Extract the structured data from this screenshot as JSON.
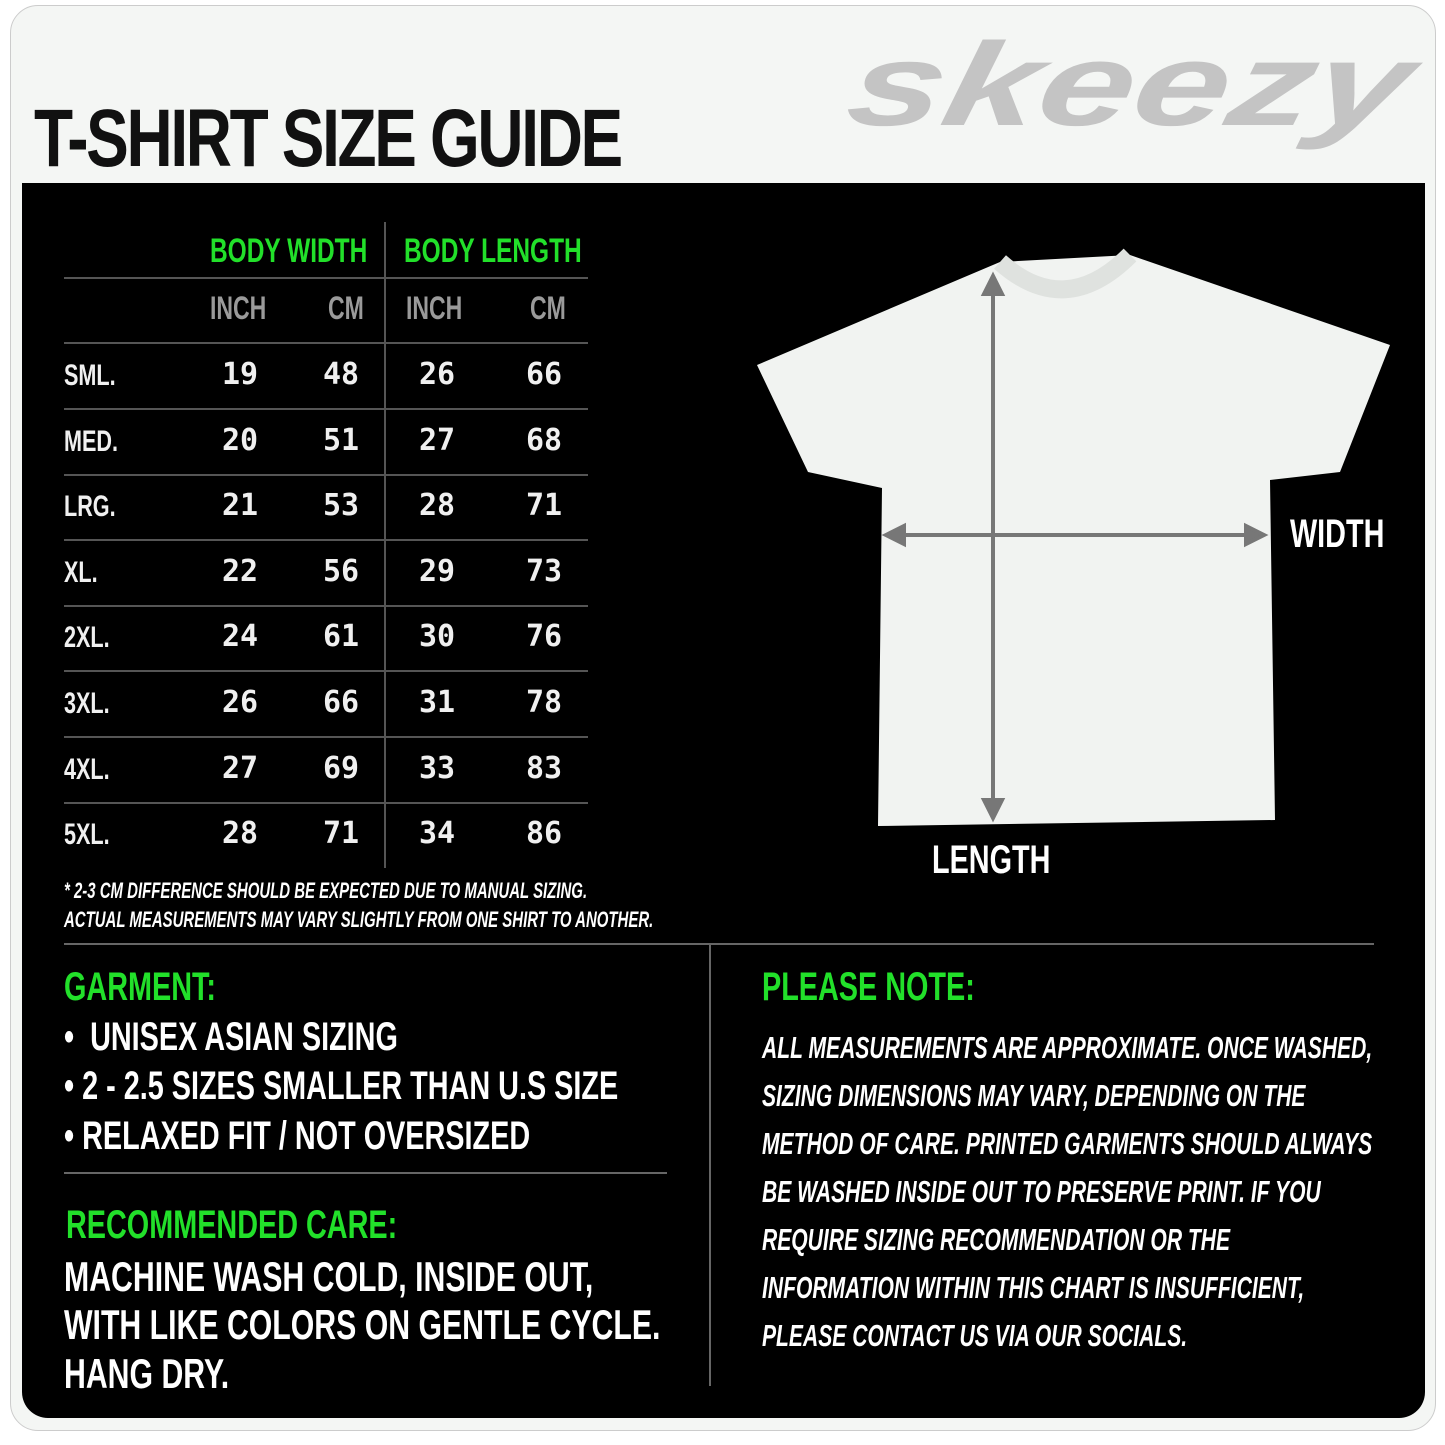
{
  "header": {
    "title": "T-SHIRT SIZE GUIDE",
    "brand": "SKEEZY"
  },
  "table": {
    "group_headers": [
      "BODY WIDTH",
      "BODY LENGTH"
    ],
    "unit_headers": [
      "INCH",
      "CM",
      "INCH",
      "CM"
    ],
    "rows": [
      {
        "size": "SML.",
        "values": [
          "19",
          "48",
          "26",
          "66"
        ]
      },
      {
        "size": "MED.",
        "values": [
          "20",
          "51",
          "27",
          "68"
        ]
      },
      {
        "size": "LRG.",
        "values": [
          "21",
          "53",
          "28",
          "71"
        ]
      },
      {
        "size": "XL.",
        "values": [
          "22",
          "56",
          "29",
          "73"
        ]
      },
      {
        "size": "2XL.",
        "values": [
          "24",
          "61",
          "30",
          "76"
        ]
      },
      {
        "size": "3XL.",
        "values": [
          "26",
          "66",
          "31",
          "78"
        ]
      },
      {
        "size": "4XL.",
        "values": [
          "27",
          "69",
          "33",
          "83"
        ]
      },
      {
        "size": "5XL.",
        "values": [
          "28",
          "71",
          "34",
          "86"
        ]
      }
    ],
    "footnotes": [
      "* 2-3 CM DIFFERENCE SHOULD BE EXPECTED DUE TO MANUAL SIZING.",
      "ACTUAL MEASUREMENTS MAY VARY SLIGHTLY FROM ONE SHIRT TO ANOTHER."
    ]
  },
  "diagram": {
    "width_label": "WIDTH",
    "length_label": "LENGTH"
  },
  "garment": {
    "heading": "GARMENT:",
    "bullets": [
      "UNISEX ASIAN SIZING",
      "2 - 2.5 SIZES SMALLER THAN U.S SIZE",
      "RELAXED FIT / NOT OVERSIZED"
    ]
  },
  "care": {
    "heading": "RECOMMENDED CARE:",
    "lines": [
      "MACHINE WASH COLD, INSIDE OUT,",
      "WITH LIKE COLORS ON GENTLE CYCLE.",
      "HANG DRY."
    ]
  },
  "note": {
    "heading": "PLEASE NOTE:",
    "lines": [
      "ALL MEASUREMENTS ARE APPROXIMATE. ONCE  WASHED,",
      "SIZING DIMENSIONS MAY VARY, DEPENDING ON THE",
      "METHOD OF CARE. PRINTED GARMENTS SHOULD ALWAYS",
      "BE WASHED INSIDE OUT TO PRESERVE PRINT.  IF YOU",
      "REQUIRE SIZING  RECOMMENDATION OR THE",
      "INFORMATION WITHIN THIS CHART IS INSUFFICIENT,",
      "PLEASE CONTACT US VIA OUR SOCIALS."
    ]
  },
  "colors": {
    "accent": "#22e02a",
    "background": "#000000",
    "logo": "#c4c4c4"
  }
}
